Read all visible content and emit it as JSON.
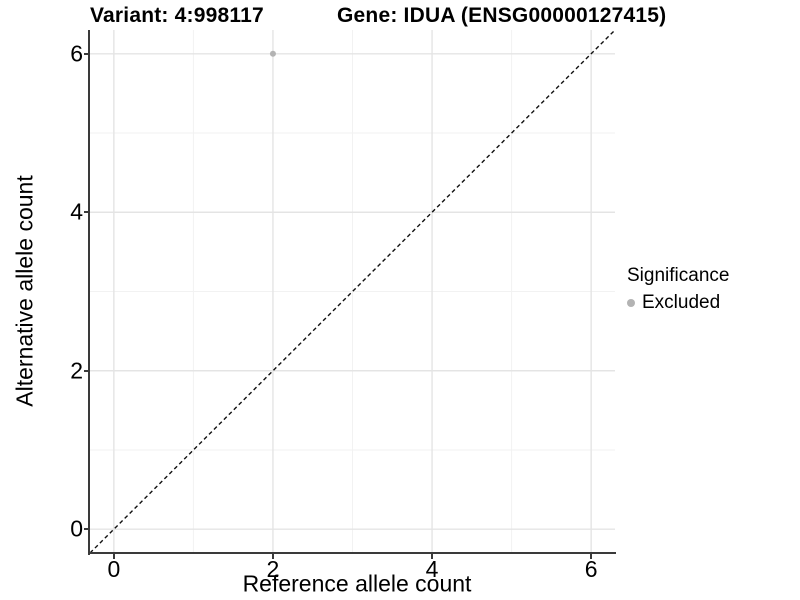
{
  "title": {
    "variant": "Variant: 4:998117",
    "gene": "Gene: IDUA (ENSG00000127415)"
  },
  "legend": {
    "title": "Significance",
    "items": [
      {
        "label": "Excluded",
        "color": "#b3b3b3"
      }
    ]
  },
  "colors": {
    "background": "#ffffff",
    "axis_line": "#3a3a3a",
    "grid_major": "#e4e4e4",
    "grid_minor": "#f2f2f2",
    "reference_line": "#111111",
    "point": "#b3b3b3",
    "text": "#000000"
  },
  "chart_data": {
    "type": "scatter",
    "title": "Variant: 4:998117   Gene: IDUA (ENSG00000127415)",
    "xlabel": "Reference allele count",
    "ylabel": "Alternative allele count",
    "xlim": [
      -0.3,
      6.3
    ],
    "ylim": [
      -0.3,
      6.3
    ],
    "xticks": [
      0,
      2,
      4,
      6
    ],
    "yticks": [
      0,
      2,
      4,
      6
    ],
    "xticks_minor": [
      1,
      3,
      5
    ],
    "yticks_minor": [
      1,
      3,
      5
    ],
    "grid": true,
    "legend_position": "right",
    "series": [
      {
        "name": "Excluded",
        "color": "#b3b3b3",
        "points": [
          {
            "x": 2,
            "y": 6
          }
        ]
      }
    ],
    "reference_line": {
      "type": "identity",
      "line_style": "dashed",
      "color": "#111111"
    }
  }
}
